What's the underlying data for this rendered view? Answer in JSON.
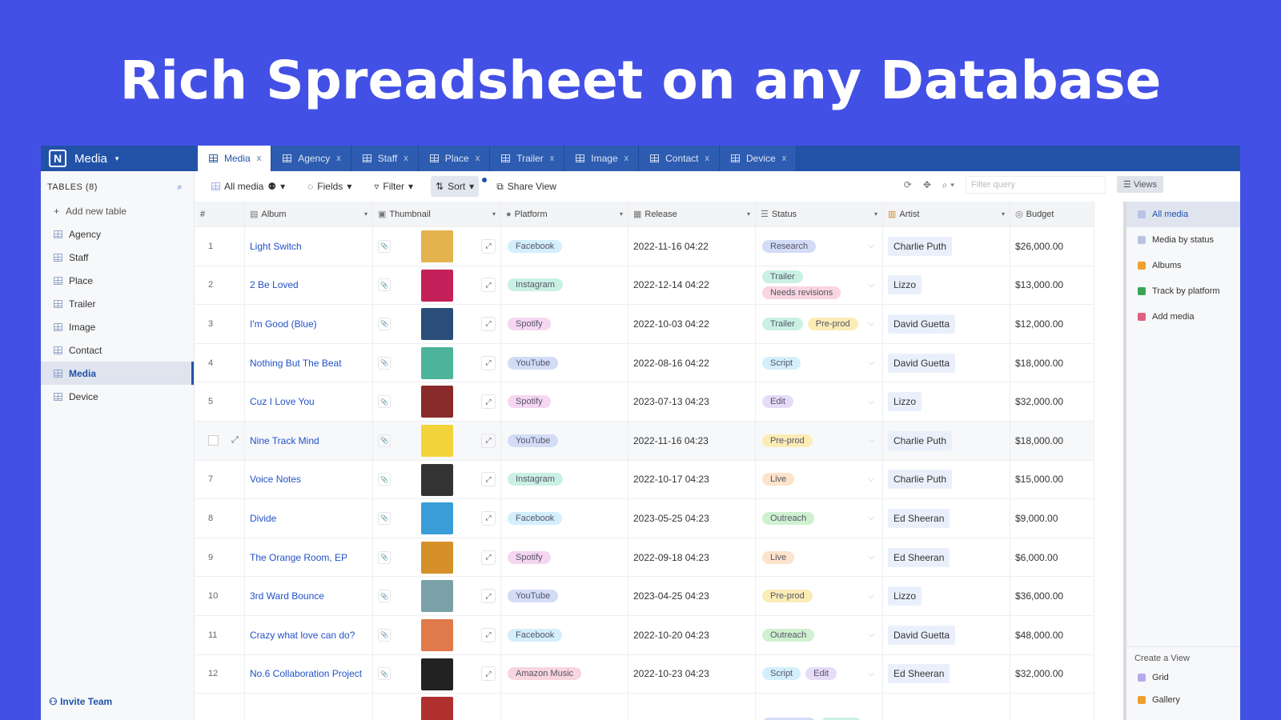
{
  "headline": "Rich Spreadsheet on any Database",
  "brand": {
    "logo": "N",
    "name": "Media"
  },
  "tabs": [
    "Media",
    "Agency",
    "Staff",
    "Place",
    "Trailer",
    "Image",
    "Contact",
    "Device"
  ],
  "sidebar": {
    "title": "TABLES (8)",
    "add": "Add new table",
    "items": [
      "Agency",
      "Staff",
      "Place",
      "Trailer",
      "Image",
      "Contact",
      "Media",
      "Device"
    ],
    "active": "Media",
    "invite": "Invite Team"
  },
  "toolbar": {
    "view": "All media",
    "fields": "Fields",
    "filter": "Filter",
    "sort": "Sort",
    "share": "Share View",
    "filter_placeholder": "Filter query",
    "views": "Views"
  },
  "columns": [
    "#",
    "Album",
    "Thumbnail",
    "Platform",
    "Release",
    "Status",
    "Artist",
    "Budget"
  ],
  "tag_colors": {
    "Facebook": "#d3effb",
    "Instagram": "#c9f1e3",
    "Spotify": "#f6d6f1",
    "YouTube": "#d2dcf6",
    "Amazon Music": "#f9d5df",
    "Research": "#d2dcf6",
    "Trailer": "#c9f1e3",
    "Needs revisions": "#f9d5df",
    "Pre-prod": "#fbecb5",
    "Script": "#d3effb",
    "Edit": "#e6dcf8",
    "Live": "#fde3cc",
    "Outreach": "#cff1d0"
  },
  "rows": [
    {
      "n": "1",
      "album": "Light Switch",
      "platform": "Facebook",
      "release": "2022-11-16 04:22",
      "status": [
        "Research"
      ],
      "artist": "Charlie Puth",
      "budget": "$26,000.00",
      "thumb": "#e3b34d"
    },
    {
      "n": "2",
      "album": "2 Be Loved",
      "platform": "Instagram",
      "release": "2022-12-14 04:22",
      "status": [
        "Trailer",
        "Needs revisions"
      ],
      "artist": "Lizzo",
      "budget": "$13,000.00",
      "thumb": "#c4205a"
    },
    {
      "n": "3",
      "album": "I'm Good (Blue)",
      "platform": "Spotify",
      "release": "2022-10-03 04:22",
      "status": [
        "Trailer",
        "Pre-prod"
      ],
      "artist": "David Guetta",
      "budget": "$12,000.00",
      "thumb": "#2a4d7a"
    },
    {
      "n": "4",
      "album": "Nothing But The Beat",
      "platform": "YouTube",
      "release": "2022-08-16 04:22",
      "status": [
        "Script"
      ],
      "artist": "David Guetta",
      "budget": "$18,000.00",
      "thumb": "#4db39a"
    },
    {
      "n": "5",
      "album": "Cuz I Love You",
      "platform": "Spotify",
      "release": "2023-07-13 04:23",
      "status": [
        "Edit"
      ],
      "artist": "Lizzo",
      "budget": "$32,000.00",
      "thumb": "#8a2a2a"
    },
    {
      "n": "",
      "album": "Nine Track Mind",
      "platform": "YouTube",
      "release": "2022-11-16 04:23",
      "status": [
        "Pre-prod"
      ],
      "artist": "Charlie Puth",
      "budget": "$18,000.00",
      "thumb": "#f2d43a"
    },
    {
      "n": "7",
      "album": "Voice Notes",
      "platform": "Instagram",
      "release": "2022-10-17 04:23",
      "status": [
        "Live"
      ],
      "artist": "Charlie Puth",
      "budget": "$15,000.00",
      "thumb": "#333333"
    },
    {
      "n": "8",
      "album": "Divide",
      "platform": "Facebook",
      "release": "2023-05-25 04:23",
      "status": [
        "Outreach"
      ],
      "artist": "Ed Sheeran",
      "budget": "$9,000.00",
      "thumb": "#3b9dd8"
    },
    {
      "n": "9",
      "album": "The Orange Room, EP",
      "platform": "Spotify",
      "release": "2022-09-18 04:23",
      "status": [
        "Live"
      ],
      "artist": "Ed Sheeran",
      "budget": "$6,000.00",
      "thumb": "#d6902a"
    },
    {
      "n": "10",
      "album": "3rd Ward Bounce",
      "platform": "YouTube",
      "release": "2023-04-25 04:23",
      "status": [
        "Pre-prod"
      ],
      "artist": "Lizzo",
      "budget": "$36,000.00",
      "thumb": "#7aa0a8"
    },
    {
      "n": "11",
      "album": "Crazy what love can do?",
      "platform": "Facebook",
      "release": "2022-10-20 04:23",
      "status": [
        "Outreach"
      ],
      "artist": "David Guetta",
      "budget": "$48,000.00",
      "thumb": "#e07a4a"
    },
    {
      "n": "12",
      "album": "No.6 Collaboration Project",
      "platform": "Amazon Music",
      "release": "2022-10-23 04:23",
      "status": [
        "Script",
        "Edit"
      ],
      "artist": "Ed Sheeran",
      "budget": "$32,000.00",
      "thumb": "#222222"
    },
    {
      "n": "",
      "album": "",
      "platform": "",
      "release": "",
      "status": [
        "Research",
        "Trailer"
      ],
      "artist": "",
      "budget": "",
      "thumb": "#b03030"
    }
  ],
  "views": {
    "items": [
      {
        "label": "All media",
        "color": "#b9c3e6"
      },
      {
        "label": "Media by status",
        "color": "#b9c3e6"
      },
      {
        "label": "Albums",
        "color": "#f0a030"
      },
      {
        "label": "Track by platform",
        "color": "#3aa55a"
      },
      {
        "label": "Add media",
        "color": "#e06080"
      }
    ],
    "active": "All media",
    "create_title": "Create a View",
    "create": [
      {
        "label": "Grid",
        "color": "#b9a8ee"
      },
      {
        "label": "Gallery",
        "color": "#f0a030"
      }
    ]
  }
}
